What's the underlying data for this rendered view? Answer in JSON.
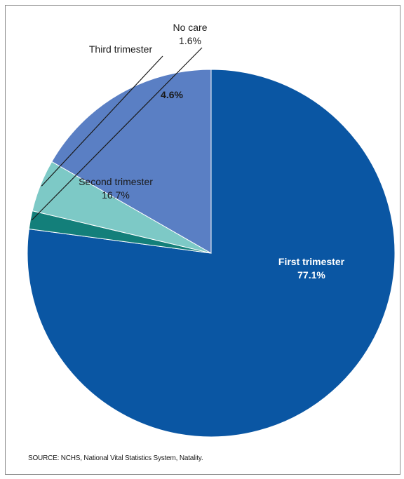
{
  "chart_data": {
    "type": "pie",
    "slices": [
      {
        "label": "First trimester",
        "value": 77.1,
        "display": "77.1%",
        "color": "#0a56a3"
      },
      {
        "label": "No care",
        "value": 1.6,
        "display": "1.6%",
        "color": "#137f7a"
      },
      {
        "label": "Third trimester",
        "value": 4.6,
        "display": "4.6%",
        "color": "#7dc9c6"
      },
      {
        "label": "Second trimester",
        "value": 16.7,
        "display": "16.7%",
        "color": "#5a7fc4"
      }
    ],
    "start_angle_deg": 0,
    "direction": "clockwise",
    "legend": "none"
  },
  "source": "SOURCE: NCHS, National Vital Statistics System, Natality."
}
